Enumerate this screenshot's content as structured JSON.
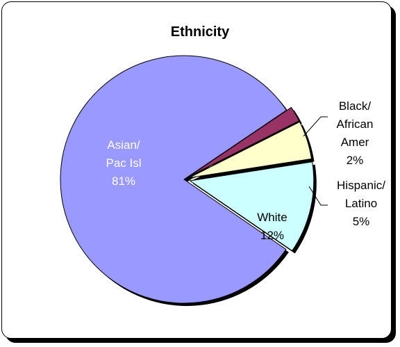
{
  "chart_data": {
    "type": "pie",
    "title": "Ethnicity",
    "slices": [
      {
        "label_lines": [
          "Asian/",
          "Pac Isl"
        ],
        "percent_label": "81%",
        "value": 81,
        "color": "#9999ff",
        "label_color": "#ffffff"
      },
      {
        "label_lines": [
          "Black/",
          "African",
          "Amer"
        ],
        "percent_label": "2%",
        "value": 2,
        "color": "#993366",
        "label_color": "#000000"
      },
      {
        "label_lines": [
          "Hispanic/",
          "Latino"
        ],
        "percent_label": "5%",
        "value": 5,
        "color": "#ffffcc",
        "label_color": "#000000"
      },
      {
        "label_lines": [
          "White"
        ],
        "percent_label": "12%",
        "value": 12,
        "color": "#ccffff",
        "label_color": "#000000"
      }
    ],
    "exploded": true
  }
}
